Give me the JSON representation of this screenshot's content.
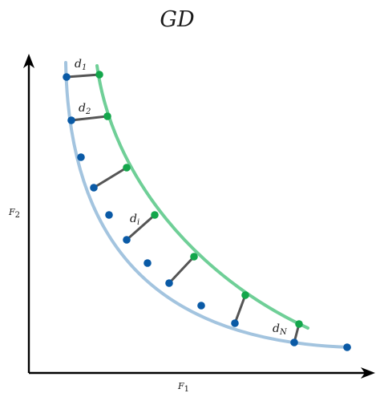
{
  "title": "GD",
  "axes": {
    "x_label": {
      "base": "F",
      "sub": "1"
    },
    "y_label": {
      "base": "F",
      "sub": "2"
    }
  },
  "distance_labels": [
    {
      "base": "d",
      "sub": "1"
    },
    {
      "base": "d",
      "sub": "2"
    },
    {
      "base": "d",
      "sub": "i"
    },
    {
      "base": "d",
      "sub": "N"
    }
  ],
  "colors": {
    "reference_front": "#a3c4df",
    "approx_front": "#6fcf97",
    "reference_point": "#0a5aa6",
    "approx_point": "#13a64b",
    "distance_segment": "#555555",
    "axis": "#000000"
  }
}
